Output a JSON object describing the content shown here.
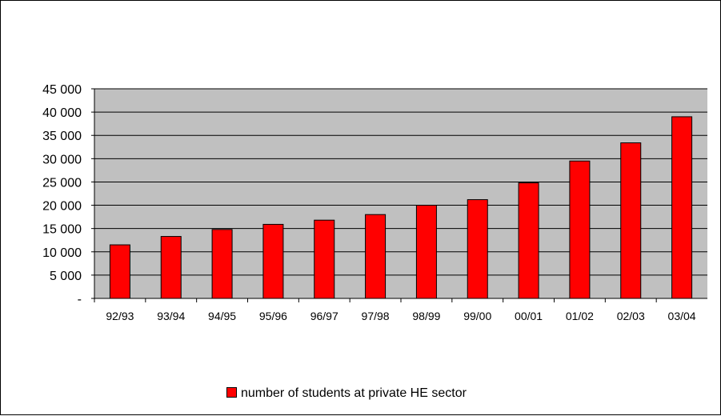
{
  "chart_data": {
    "type": "bar",
    "title": "",
    "xlabel": "",
    "ylabel": "",
    "categories": [
      "92/93",
      "93/94",
      "94/95",
      "95/96",
      "96/97",
      "97/98",
      "98/99",
      "99/00",
      "00/01",
      "01/02",
      "02/03",
      "03/04"
    ],
    "series": [
      {
        "name": "number of students at private HE sector",
        "values": [
          11500,
          13300,
          14800,
          15900,
          16800,
          18000,
          20000,
          21200,
          24800,
          29500,
          33400,
          39000
        ]
      }
    ],
    "ylim": [
      0,
      45000
    ],
    "yticks": [
      0,
      5000,
      10000,
      15000,
      20000,
      25000,
      30000,
      35000,
      40000,
      45000
    ],
    "ytick_labels": [
      "-",
      "5 000",
      "10 000",
      "15 000",
      "20 000",
      "25 000",
      "30 000",
      "35 000",
      "40 000",
      "45 000"
    ],
    "grid": true,
    "legend_position": "bottom",
    "colors": {
      "bar": "#ff0000",
      "plot_background": "#c0c0c0",
      "gridline": "#000000"
    }
  }
}
